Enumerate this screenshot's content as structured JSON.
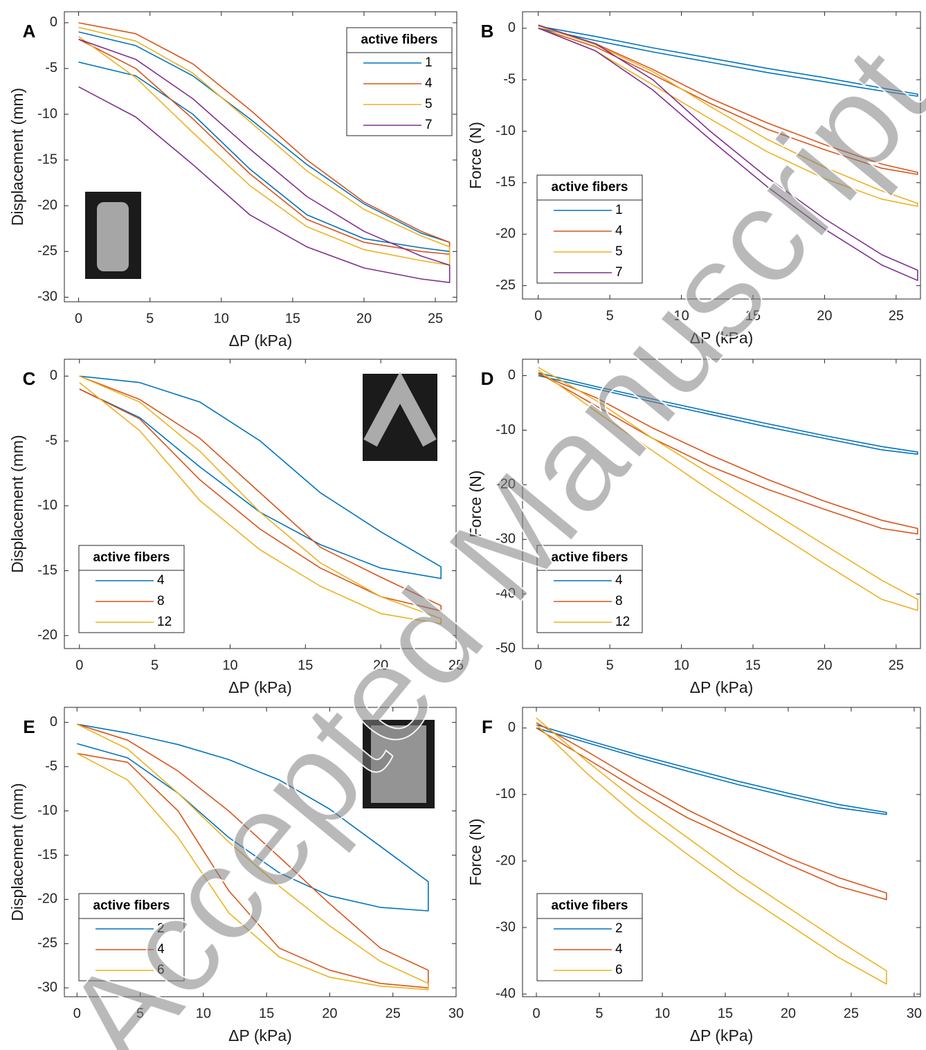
{
  "chart_data": [
    {
      "type": "line",
      "panel": "A",
      "xlabel": "ΔP (kPa)",
      "ylabel": "Displacement (mm)",
      "xlim": [
        -1,
        26.5
      ],
      "ylim": [
        -30.5,
        1.2
      ],
      "xticks": [
        0,
        5,
        10,
        15,
        20,
        25
      ],
      "yticks": [
        -30,
        -25,
        -20,
        -15,
        -10,
        -5,
        0
      ],
      "grid": false,
      "legend_title": "active fibers",
      "legend_loc": "northeast",
      "series": [
        {
          "name": "1",
          "color": "#0072BD",
          "x": [
            0,
            4,
            8,
            12,
            16,
            20,
            24,
            26,
            26,
            24,
            20,
            16,
            12,
            8,
            4,
            0
          ],
          "values": [
            -1,
            -2.5,
            -5.8,
            -10.5,
            -15.5,
            -19.8,
            -23,
            -24,
            -25,
            -24.6,
            -23.6,
            -21,
            -16,
            -10,
            -5.8,
            -4.3
          ]
        },
        {
          "name": "4",
          "color": "#D95319",
          "x": [
            0,
            4,
            8,
            12,
            16,
            20,
            24,
            26,
            26,
            24,
            20,
            16,
            12,
            8,
            4,
            0
          ],
          "values": [
            0,
            -1.2,
            -4.5,
            -9.5,
            -15,
            -19.6,
            -22.8,
            -24,
            -25.3,
            -25,
            -24,
            -21.5,
            -16.5,
            -10.5,
            -5,
            -1.8
          ]
        },
        {
          "name": "5",
          "color": "#EDB120",
          "x": [
            0,
            4,
            8,
            12,
            16,
            20,
            24,
            26,
            26,
            24,
            20,
            16,
            12,
            8,
            4,
            0
          ],
          "values": [
            -0.5,
            -2,
            -5.5,
            -10.8,
            -16.2,
            -20.4,
            -23.3,
            -24.5,
            -26.5,
            -26,
            -24.8,
            -22.3,
            -17.8,
            -12,
            -6,
            -1.5
          ]
        },
        {
          "name": "7",
          "color": "#7E2F8E",
          "x": [
            0,
            4,
            8,
            12,
            16,
            20,
            24,
            26,
            26,
            24,
            20,
            16,
            12,
            8,
            4,
            0
          ],
          "values": [
            -1.8,
            -4,
            -8.3,
            -13.8,
            -19,
            -22.8,
            -25.5,
            -26.5,
            -28.4,
            -28,
            -26.8,
            -24.5,
            -21,
            -15.5,
            -10.3,
            -7
          ]
        }
      ]
    },
    {
      "type": "line",
      "panel": "B",
      "xlabel": "ΔP (kPa)",
      "ylabel": "Force (N)",
      "xlim": [
        -1.1,
        26.7
      ],
      "ylim": [
        -26.3,
        1.6
      ],
      "xticks": [
        0,
        5,
        10,
        15,
        20,
        25
      ],
      "yticks": [
        -25,
        -20,
        -15,
        -10,
        -5,
        0
      ],
      "grid": false,
      "legend_title": "active fibers",
      "legend_loc": "southwest",
      "series": [
        {
          "name": "1",
          "color": "#0072BD",
          "x": [
            0,
            4,
            8,
            12,
            16,
            20,
            24,
            26.5,
            26.5,
            24,
            20,
            16,
            12,
            8,
            4,
            0
          ],
          "values": [
            0.2,
            -0.8,
            -1.9,
            -2.9,
            -3.9,
            -4.8,
            -5.8,
            -6.4,
            -6.6,
            -6.1,
            -5.2,
            -4.3,
            -3.3,
            -2.3,
            -1.2,
            0
          ]
        },
        {
          "name": "4",
          "color": "#D95319",
          "x": [
            0,
            4,
            8,
            12,
            16,
            20,
            24,
            26.5,
            26.5,
            24,
            20,
            16,
            12,
            8,
            4,
            0
          ],
          "values": [
            0.3,
            -1.5,
            -4,
            -6.8,
            -9.2,
            -11.3,
            -13.2,
            -14,
            -14.2,
            -13.6,
            -11.8,
            -9.8,
            -7.3,
            -4.5,
            -1.8,
            0
          ]
        },
        {
          "name": "5",
          "color": "#EDB120",
          "x": [
            0,
            4,
            8,
            12,
            16,
            20,
            24,
            26.5,
            26.5,
            24,
            20,
            16,
            12,
            8,
            4,
            0
          ],
          "values": [
            0.2,
            -1.6,
            -4.2,
            -7.6,
            -10.8,
            -13.5,
            -15.8,
            -17,
            -17.3,
            -16.6,
            -14.6,
            -12,
            -8.8,
            -5.5,
            -2.2,
            0
          ]
        },
        {
          "name": "7",
          "color": "#7E2F8E",
          "x": [
            0,
            4,
            8,
            12,
            16,
            20,
            24,
            26.5,
            26.5,
            24,
            20,
            16,
            12,
            8,
            4,
            0
          ],
          "values": [
            0.3,
            -1.5,
            -5,
            -10,
            -14.5,
            -18.5,
            -22,
            -23.5,
            -24.5,
            -23,
            -19.5,
            -15.4,
            -10.8,
            -6,
            -2.2,
            0
          ]
        }
      ]
    },
    {
      "type": "line",
      "panel": "C",
      "xlabel": "ΔP (kPa)",
      "ylabel": "Displacement (mm)",
      "xlim": [
        -1,
        25
      ],
      "ylim": [
        -21,
        1.3
      ],
      "xticks": [
        0,
        5,
        10,
        15,
        20,
        25
      ],
      "yticks": [
        -20,
        -15,
        -10,
        -5,
        0
      ],
      "grid": false,
      "legend_title": "active fibers",
      "legend_loc": "southwest",
      "series": [
        {
          "name": "4",
          "color": "#0072BD",
          "x": [
            0,
            4,
            8,
            12,
            16,
            20,
            24,
            24,
            20,
            16,
            12,
            8,
            4,
            0
          ],
          "values": [
            0,
            -0.5,
            -2,
            -5,
            -9,
            -12,
            -14.7,
            -15.6,
            -14.8,
            -13,
            -10.5,
            -7,
            -3.2,
            -1
          ]
        },
        {
          "name": "8",
          "color": "#D95319",
          "x": [
            0,
            4,
            8,
            12,
            16,
            20,
            24,
            24,
            20,
            16,
            12,
            8,
            4,
            0
          ],
          "values": [
            0,
            -1.8,
            -4.8,
            -9,
            -13.2,
            -15.5,
            -17.7,
            -18.1,
            -17,
            -14.8,
            -11.8,
            -8,
            -3.3,
            -1
          ]
        },
        {
          "name": "12",
          "color": "#EDB120",
          "x": [
            0,
            4,
            8,
            12,
            16,
            20,
            24,
            24,
            20,
            16,
            12,
            8,
            4,
            0
          ],
          "values": [
            0,
            -2,
            -5.8,
            -10.5,
            -14.4,
            -17,
            -18.7,
            -19.1,
            -18.3,
            -16.2,
            -13.4,
            -9.6,
            -4.2,
            -0.5
          ]
        }
      ]
    },
    {
      "type": "line",
      "panel": "D",
      "xlabel": "ΔP (kPa)",
      "ylabel": "Force (N)",
      "xlim": [
        -1.1,
        26.7
      ],
      "ylim": [
        -50,
        3
      ],
      "xticks": [
        0,
        5,
        10,
        15,
        20,
        25
      ],
      "yticks": [
        -50,
        -40,
        -30,
        -20,
        -10,
        0
      ],
      "grid": false,
      "legend_title": "active fibers",
      "legend_loc": "southwest",
      "series": [
        {
          "name": "4",
          "color": "#0072BD",
          "x": [
            0,
            4,
            8,
            12,
            16,
            20,
            24,
            26.5,
            26.5,
            24,
            20,
            16,
            12,
            8,
            4,
            0
          ],
          "values": [
            0.5,
            -2,
            -4.3,
            -6.6,
            -8.8,
            -11,
            -13,
            -14,
            -14.4,
            -13.6,
            -11.5,
            -9.4,
            -7.1,
            -4.8,
            -2.4,
            0
          ]
        },
        {
          "name": "8",
          "color": "#D95319",
          "x": [
            0,
            4,
            8,
            12,
            16,
            20,
            24,
            26.5,
            26.5,
            24,
            20,
            16,
            12,
            8,
            4,
            0
          ],
          "values": [
            0.3,
            -4,
            -9.6,
            -14.5,
            -19,
            -23,
            -26.5,
            -28,
            -29,
            -28,
            -24.5,
            -20.8,
            -16.6,
            -11.5,
            -5.5,
            0.5
          ]
        },
        {
          "name": "12",
          "color": "#EDB120",
          "x": [
            0,
            4,
            8,
            12,
            16,
            20,
            24,
            26.5,
            26.5,
            24,
            20,
            16,
            12,
            8,
            4,
            0
          ],
          "values": [
            1.5,
            -4.5,
            -11.5,
            -18,
            -24.5,
            -31,
            -37.5,
            -41,
            -43,
            -41,
            -34.5,
            -27.8,
            -21,
            -13.8,
            -6.5,
            1
          ]
        }
      ]
    },
    {
      "type": "line",
      "panel": "E",
      "xlabel": "ΔP (kPa)",
      "ylabel": "Displacement (mm)",
      "xlim": [
        -1,
        30
      ],
      "ylim": [
        -31,
        1.7
      ],
      "xticks": [
        0,
        5,
        10,
        15,
        20,
        25,
        30
      ],
      "yticks": [
        -30,
        -25,
        -20,
        -15,
        -10,
        -5,
        0
      ],
      "grid": false,
      "legend_title": "active fibers",
      "legend_loc": "southwest",
      "series": [
        {
          "name": "2",
          "color": "#0072BD",
          "x": [
            0,
            4,
            8,
            12,
            16,
            20,
            24,
            27.8,
            27.8,
            24,
            20,
            16,
            12,
            8,
            4,
            0
          ],
          "values": [
            -0.2,
            -1.2,
            -2.5,
            -4.2,
            -6.5,
            -9.8,
            -14,
            -18,
            -21.3,
            -20.9,
            -19.6,
            -17,
            -13,
            -8,
            -4,
            -2.4
          ]
        },
        {
          "name": "4",
          "color": "#D95319",
          "x": [
            0,
            4,
            8,
            12,
            16,
            20,
            24,
            27.8,
            27.8,
            24,
            20,
            16,
            12,
            8,
            4,
            0
          ],
          "values": [
            -0.2,
            -2,
            -5.5,
            -10,
            -15.2,
            -20.5,
            -25.5,
            -28,
            -30,
            -29.5,
            -28,
            -25.5,
            -19,
            -10,
            -4.5,
            -3.5
          ]
        },
        {
          "name": "6",
          "color": "#EDB120",
          "x": [
            0,
            4,
            8,
            12,
            16,
            20,
            24,
            27.8,
            27.8,
            24,
            20,
            16,
            12,
            8,
            4,
            0
          ],
          "values": [
            -0.2,
            -3,
            -8,
            -13.5,
            -18.5,
            -23,
            -27,
            -29.5,
            -30.2,
            -29.8,
            -28.8,
            -26.5,
            -21.5,
            -13,
            -6.5,
            -3.5
          ]
        }
      ]
    },
    {
      "type": "line",
      "panel": "F",
      "xlabel": "ΔP (kPa)",
      "ylabel": "Force (N)",
      "xlim": [
        -1.1,
        30.5
      ],
      "ylim": [
        -40.4,
        3.1
      ],
      "xticks": [
        0,
        5,
        10,
        15,
        20,
        25,
        30
      ],
      "yticks": [
        -40,
        -30,
        -20,
        -10,
        0
      ],
      "grid": false,
      "legend_title": "active fibers",
      "legend_loc": "southwest",
      "series": [
        {
          "name": "2",
          "color": "#0072BD",
          "x": [
            0,
            4,
            8,
            12,
            16,
            20,
            24,
            27.8,
            27.8,
            24,
            20,
            16,
            12,
            8,
            4,
            0
          ],
          "values": [
            0.5,
            -1.8,
            -4,
            -6,
            -8,
            -9.8,
            -11.5,
            -12.7,
            -13,
            -12,
            -10.3,
            -8.5,
            -6.5,
            -4.4,
            -2.2,
            0
          ]
        },
        {
          "name": "4",
          "color": "#D95319",
          "x": [
            0,
            4,
            8,
            12,
            16,
            20,
            24,
            27.8,
            27.8,
            24,
            20,
            16,
            12,
            8,
            4,
            0
          ],
          "values": [
            0.8,
            -3.5,
            -8,
            -12.3,
            -16,
            -19.5,
            -22.5,
            -24.8,
            -25.8,
            -23.8,
            -20.5,
            -17,
            -13.5,
            -9.2,
            -4.6,
            0
          ]
        },
        {
          "name": "6",
          "color": "#EDB120",
          "x": [
            0,
            4,
            8,
            12,
            16,
            20,
            24,
            27.8,
            27.8,
            24,
            20,
            16,
            12,
            8,
            4,
            0
          ],
          "values": [
            1.5,
            -5,
            -11,
            -16.5,
            -22,
            -27,
            -32,
            -36.5,
            -38.5,
            -34.5,
            -29.5,
            -24.5,
            -19,
            -13.3,
            -6.8,
            0.5
          ]
        }
      ]
    }
  ],
  "watermark": "Accepted Manuscript"
}
